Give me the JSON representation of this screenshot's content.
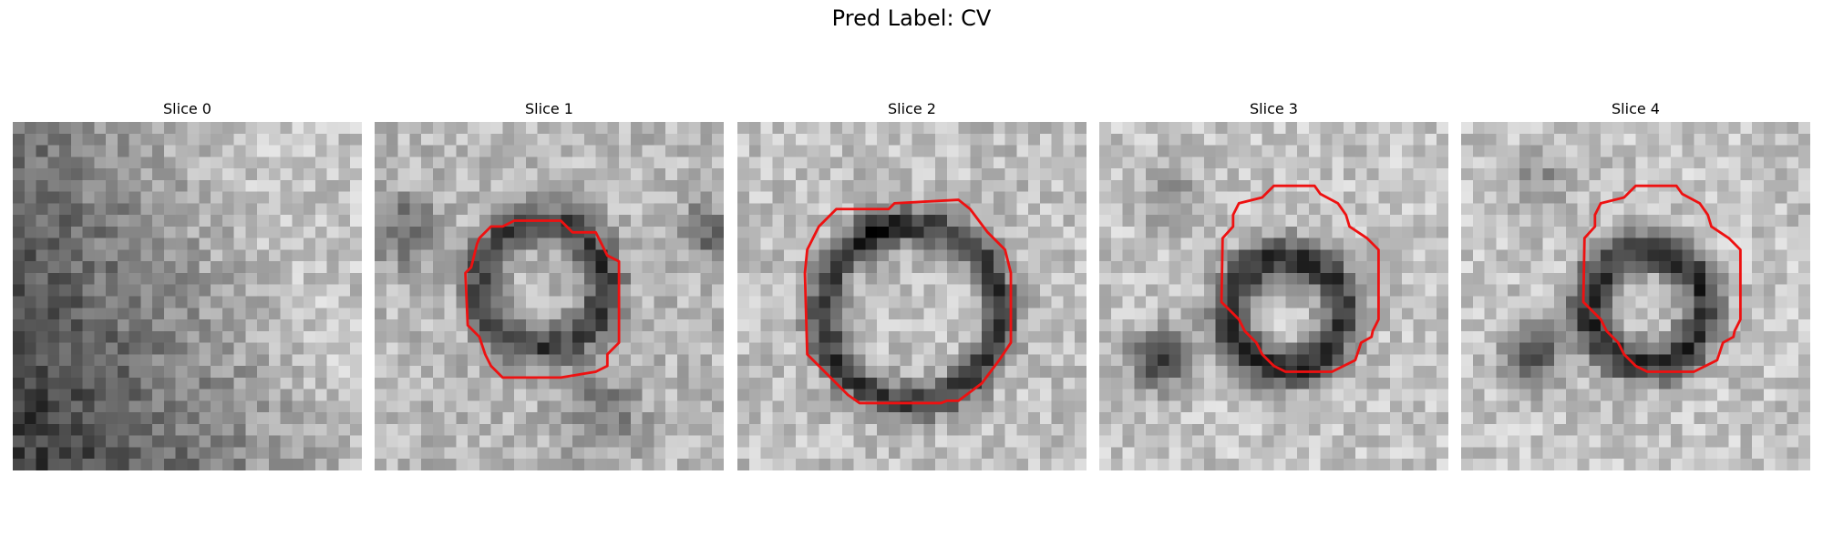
{
  "figure": {
    "title": "Pred Label: CV"
  },
  "panels": [
    {
      "title": "Slice 0"
    },
    {
      "title": "Slice 1"
    },
    {
      "title": "Slice 2"
    },
    {
      "title": "Slice 3"
    },
    {
      "title": "Slice 4"
    }
  ],
  "colors": {
    "contour": "#ee1111"
  }
}
